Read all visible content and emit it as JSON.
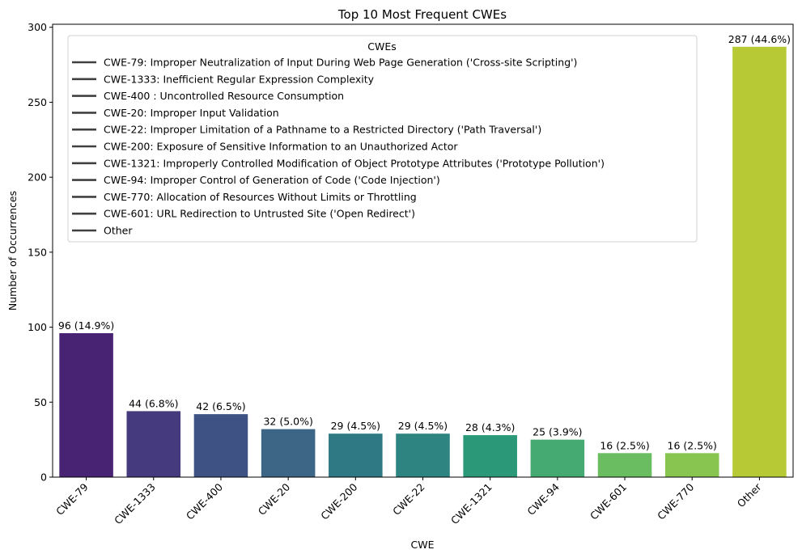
{
  "chart_data": {
    "type": "bar",
    "title": "Top 10 Most Frequent CWEs",
    "xlabel": "CWE",
    "ylabel": "Number of Occurrences",
    "ylim": [
      0,
      302
    ],
    "yticks": [
      0,
      50,
      100,
      150,
      200,
      250,
      300
    ],
    "grid": false,
    "categories": [
      "CWE-79",
      "CWE-1333",
      "CWE-400",
      "CWE-20",
      "CWE-200",
      "CWE-22",
      "CWE-1321",
      "CWE-94",
      "CWE-601",
      "CWE-770",
      "Other"
    ],
    "values": [
      96,
      44,
      42,
      32,
      29,
      29,
      28,
      25,
      16,
      16,
      287
    ],
    "data_labels": [
      "96 (14.9%)",
      "44 (6.8%)",
      "42 (6.5%)",
      "32 (5.0%)",
      "29 (4.5%)",
      "29 (4.5%)",
      "28 (4.3%)",
      "25 (3.9%)",
      "16 (2.5%)",
      "16 (2.5%)",
      "287 (44.6%)"
    ],
    "colors": [
      "#482374",
      "#453a7d",
      "#3e5284",
      "#3d6585",
      "#2e7984",
      "#2d8480",
      "#2b9878",
      "#45aa72",
      "#6abd60",
      "#87c450",
      "#b7ca35"
    ],
    "legend": {
      "title": "CWEs",
      "placement": "upper-center",
      "entries": [
        "CWE-79: Improper Neutralization of Input During Web Page Generation ('Cross-site Scripting')",
        "CWE-1333: Inefficient Regular Expression Complexity",
        "CWE-400 : Uncontrolled Resource Consumption",
        "CWE-20: Improper Input Validation",
        "CWE-22: Improper Limitation of a Pathname to a Restricted Directory ('Path Traversal')",
        "CWE-200: Exposure of Sensitive Information to an Unauthorized Actor",
        "CWE-1321: Improperly Controlled Modification of Object Prototype Attributes ('Prototype Pollution')",
        "CWE-94: Improper Control of Generation of Code ('Code Injection')",
        "CWE-770: Allocation of Resources Without Limits or Throttling",
        "CWE-601: URL Redirection to Untrusted Site ('Open Redirect')",
        "Other"
      ],
      "line_color": "#404040"
    }
  }
}
